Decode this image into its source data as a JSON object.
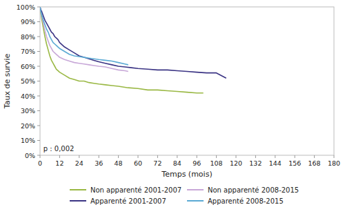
{
  "chart_data": {
    "type": "line",
    "xlabel": "Temps (mois)",
    "ylabel": "Taux de survie",
    "xlim": [
      0,
      180
    ],
    "ylim": [
      0,
      1.0
    ],
    "xticks": [
      0,
      12,
      24,
      36,
      48,
      60,
      72,
      84,
      96,
      108,
      120,
      132,
      144,
      156,
      168,
      180
    ],
    "yticks": [
      {
        "value": 0.0,
        "label": "0%"
      },
      {
        "value": 0.1,
        "label": "10%"
      },
      {
        "value": 0.2,
        "label": "20%"
      },
      {
        "value": 0.3,
        "label": "30%"
      },
      {
        "value": 0.4,
        "label": "40%"
      },
      {
        "value": 0.5,
        "label": "50%"
      },
      {
        "value": 0.6,
        "label": "60%"
      },
      {
        "value": 0.7,
        "label": "70%"
      },
      {
        "value": 0.8,
        "label": "80%"
      },
      {
        "value": 0.9,
        "label": "90%"
      },
      {
        "value": 1.0,
        "label": "100%"
      }
    ],
    "annotations": [
      {
        "text": "p : 0,002",
        "x": 2,
        "y": 0.02
      }
    ],
    "series": [
      {
        "name": "Non apparenté 2001-2007",
        "color": "#9ab844",
        "x": [
          0,
          0.5,
          1,
          2,
          3,
          4,
          5,
          6,
          7,
          8,
          9,
          10,
          11,
          12,
          15,
          18,
          21,
          24,
          27,
          30,
          33,
          36,
          40,
          44,
          48,
          54,
          60,
          66,
          72,
          78,
          84,
          90,
          96,
          100
        ],
        "values": [
          1.0,
          0.96,
          0.92,
          0.86,
          0.8,
          0.75,
          0.71,
          0.67,
          0.64,
          0.62,
          0.6,
          0.58,
          0.57,
          0.56,
          0.54,
          0.52,
          0.51,
          0.5,
          0.5,
          0.49,
          0.485,
          0.48,
          0.475,
          0.47,
          0.465,
          0.455,
          0.45,
          0.44,
          0.44,
          0.435,
          0.43,
          0.425,
          0.42,
          0.42
        ]
      },
      {
        "name": "Non apparenté 2008-2015",
        "color": "#c8a8d8",
        "x": [
          0,
          0.5,
          1,
          2,
          3,
          4,
          5,
          6,
          7,
          8,
          9,
          10,
          11,
          12,
          15,
          18,
          21,
          24,
          27,
          30,
          33,
          36,
          40,
          44,
          48,
          52,
          54
        ],
        "values": [
          1.0,
          0.97,
          0.94,
          0.89,
          0.84,
          0.8,
          0.77,
          0.74,
          0.72,
          0.7,
          0.69,
          0.68,
          0.67,
          0.66,
          0.645,
          0.635,
          0.625,
          0.62,
          0.615,
          0.61,
          0.605,
          0.6,
          0.595,
          0.585,
          0.575,
          0.57,
          0.565
        ]
      },
      {
        "name": "Apparenté 2001-2007",
        "color": "#3b3484",
        "x": [
          0,
          0.5,
          1,
          2,
          3,
          4,
          5,
          6,
          7,
          8,
          9,
          10,
          11,
          12,
          15,
          18,
          21,
          24,
          27,
          30,
          33,
          36,
          40,
          44,
          48,
          52,
          56,
          60,
          66,
          72,
          78,
          84,
          90,
          96,
          102,
          108,
          114
        ],
        "values": [
          1.0,
          0.98,
          0.97,
          0.94,
          0.91,
          0.89,
          0.87,
          0.85,
          0.83,
          0.82,
          0.8,
          0.79,
          0.78,
          0.76,
          0.73,
          0.71,
          0.69,
          0.67,
          0.66,
          0.65,
          0.64,
          0.63,
          0.62,
          0.61,
          0.6,
          0.595,
          0.59,
          0.585,
          0.58,
          0.575,
          0.575,
          0.57,
          0.565,
          0.56,
          0.555,
          0.555,
          0.52
        ]
      },
      {
        "name": "Apparenté 2008-2015",
        "color": "#5baad4",
        "x": [
          0,
          0.5,
          1,
          2,
          3,
          4,
          5,
          6,
          7,
          8,
          9,
          10,
          11,
          12,
          15,
          18,
          21,
          24,
          27,
          30,
          33,
          36,
          40,
          44,
          48,
          52,
          54
        ],
        "values": [
          1.0,
          0.97,
          0.95,
          0.91,
          0.88,
          0.85,
          0.83,
          0.8,
          0.78,
          0.76,
          0.75,
          0.74,
          0.73,
          0.72,
          0.7,
          0.68,
          0.67,
          0.665,
          0.66,
          0.655,
          0.65,
          0.645,
          0.64,
          0.635,
          0.625,
          0.615,
          0.61
        ]
      }
    ]
  }
}
